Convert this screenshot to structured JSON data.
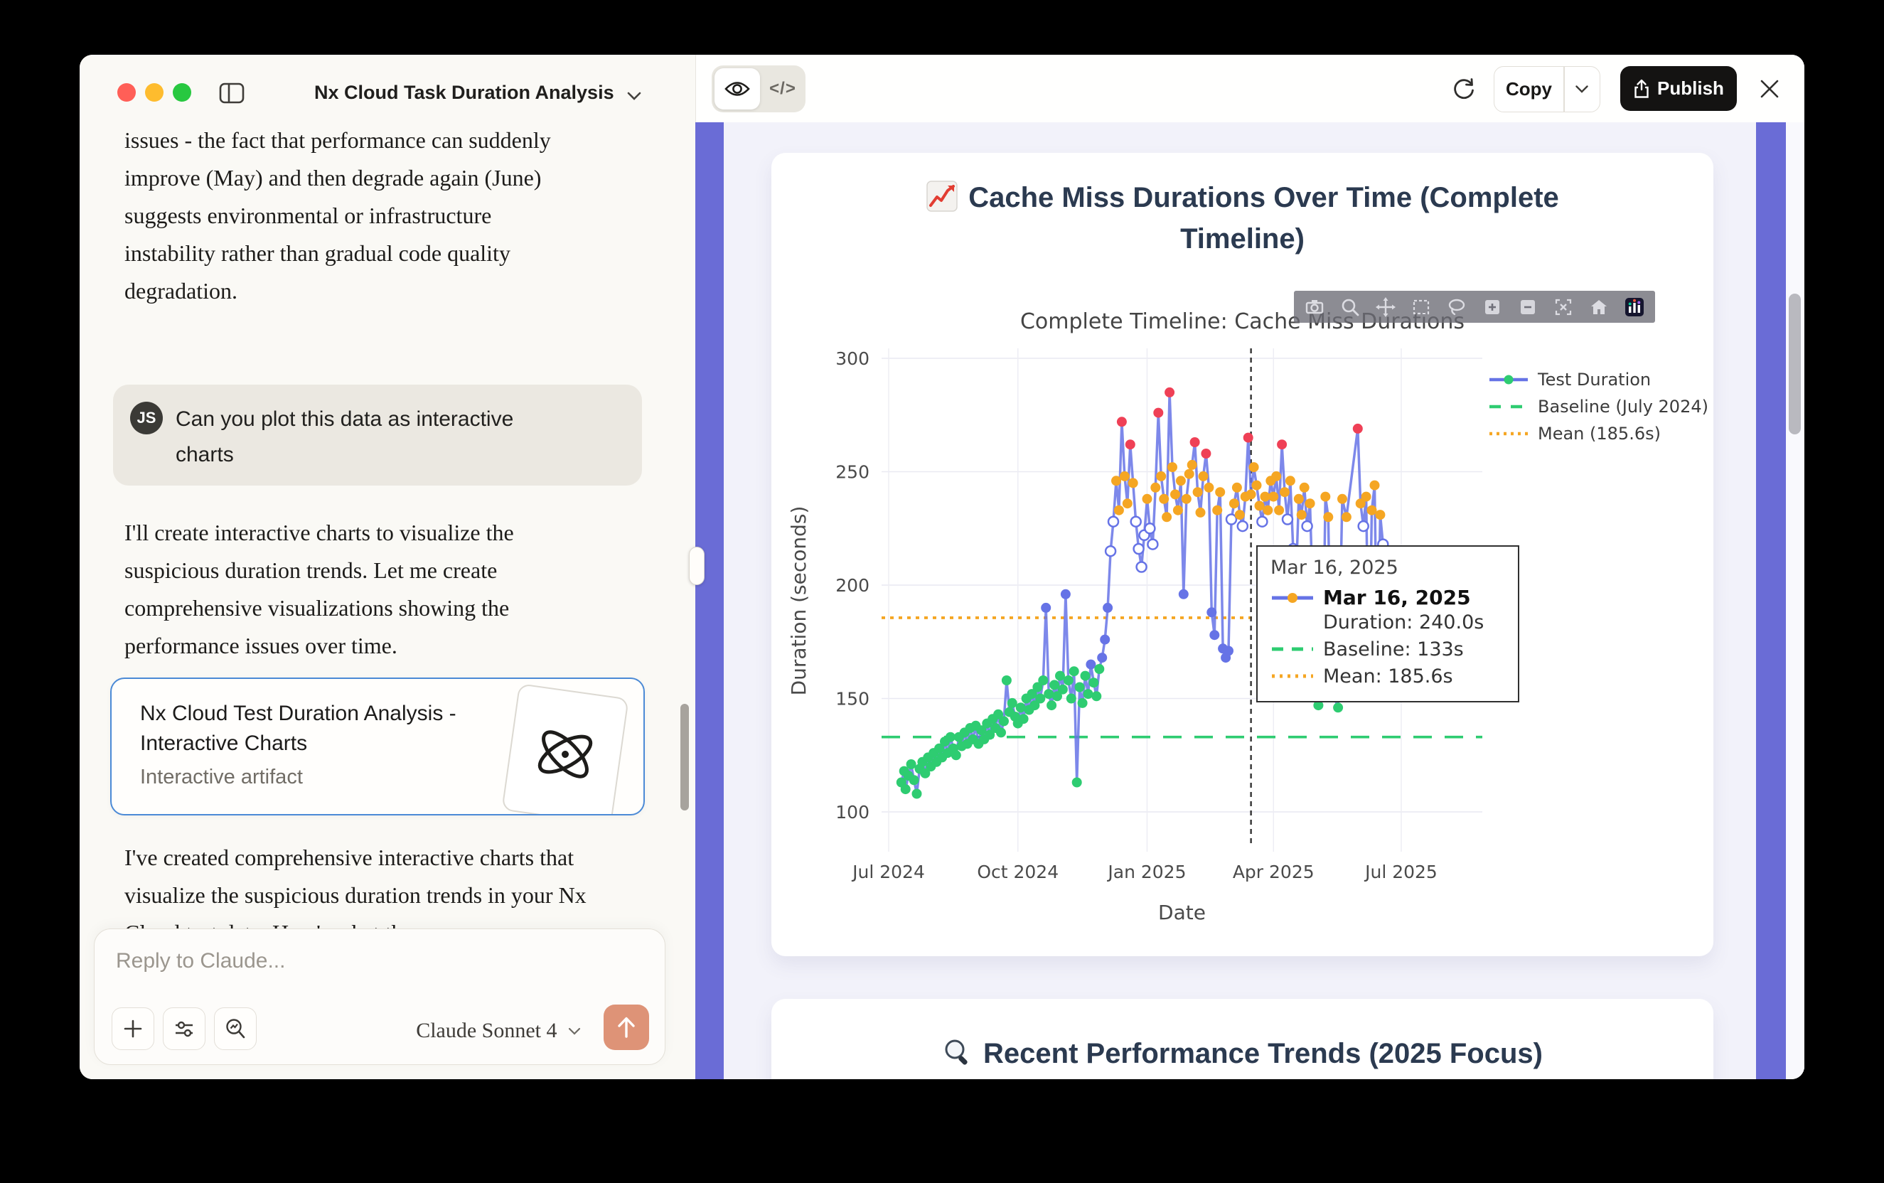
{
  "window": {
    "title": "Nx Cloud Task Duration Analysis"
  },
  "chat": {
    "intro_paragraph": "issues - the fact that performance can suddenly improve (May) and then degrade again (June) suggests environmental or infrastructure instability rather than gradual code quality degradation.",
    "user_message": {
      "avatar_initials": "JS",
      "text": "Can you plot this data as interactive charts"
    },
    "assistant_paragraph": "I'll create interactive charts to visualize the suspicious duration trends. Let me create comprehensive visualizations showing the performance issues over time.",
    "artifact_card": {
      "title": "Nx Cloud Test Duration Analysis - Interactive Charts",
      "subtitle": "Interactive artifact"
    },
    "closing_paragraph": "I've created comprehensive interactive charts that visualize the suspicious duration trends in your Nx Cloud test data. Here's what the",
    "composer": {
      "placeholder": "Reply to Claude...",
      "model_label": "Claude Sonnet 4"
    }
  },
  "artifact": {
    "toolbar": {
      "copy_label": "Copy",
      "publish_label": "Publish",
      "code_toggle_label": "</>"
    },
    "card1": {
      "icon": "chart-increasing-icon",
      "title": "Cache Miss Durations Over Time (Complete Timeline)"
    },
    "card2": {
      "icon": "magnifier-icon",
      "title": "Recent Performance Trends (2025 Focus)"
    }
  },
  "chart_data": {
    "type": "line",
    "title": "Complete Timeline: Cache Miss Durations",
    "xlabel": "Date",
    "ylabel": "Duration (seconds)",
    "x_ticks": [
      {
        "label": "Jul 2024",
        "day": 0
      },
      {
        "label": "Oct 2024",
        "day": 92
      },
      {
        "label": "Jan 2025",
        "day": 184
      },
      {
        "label": "Apr 2025",
        "day": 274
      },
      {
        "label": "Jul 2025",
        "day": 365
      }
    ],
    "y_ticks": [
      100,
      150,
      200,
      250,
      300
    ],
    "ylim": [
      95,
      310
    ],
    "day0": "2024-07-01",
    "grid": true,
    "legend_position": "right-top",
    "line_color": "#6673e6",
    "legend": [
      {
        "label": "Test Duration",
        "type": "line-marker",
        "line_color": "#6673e6",
        "marker_color": "#2ecc71"
      },
      {
        "label": "Baseline (July 2024)",
        "type": "dash",
        "color": "#2ecc71"
      },
      {
        "label": "Mean (185.6s)",
        "type": "dot",
        "color": "#f5a623"
      }
    ],
    "baseline_value": 133,
    "mean_value": 185.6,
    "vline_day": 258,
    "marker_color_rules": [
      {
        "lt": 165,
        "color": "#2ecc71"
      },
      {
        "lt": 208,
        "color": "#6673e6"
      },
      {
        "lt": 230,
        "color": "#ffffff"
      },
      {
        "lt": 255,
        "color": "#f5a623"
      },
      {
        "lt": 1000,
        "color": "#ef4056"
      }
    ],
    "points": [
      [
        9,
        113
      ],
      [
        11,
        118
      ],
      [
        12,
        110
      ],
      [
        14,
        116
      ],
      [
        16,
        121
      ],
      [
        18,
        114
      ],
      [
        20,
        108
      ],
      [
        22,
        119
      ],
      [
        24,
        122
      ],
      [
        26,
        117
      ],
      [
        28,
        124
      ],
      [
        30,
        120
      ],
      [
        32,
        126
      ],
      [
        34,
        122
      ],
      [
        36,
        128
      ],
      [
        38,
        124
      ],
      [
        40,
        131
      ],
      [
        42,
        126
      ],
      [
        44,
        133
      ],
      [
        46,
        128
      ],
      [
        48,
        125
      ],
      [
        50,
        133
      ],
      [
        52,
        129
      ],
      [
        54,
        135
      ],
      [
        56,
        130
      ],
      [
        58,
        137
      ],
      [
        60,
        132
      ],
      [
        62,
        138
      ],
      [
        64,
        130
      ],
      [
        66,
        136
      ],
      [
        68,
        132
      ],
      [
        70,
        139
      ],
      [
        72,
        134
      ],
      [
        74,
        141
      ],
      [
        76,
        137
      ],
      [
        78,
        143
      ],
      [
        80,
        135
      ],
      [
        82,
        140
      ],
      [
        84,
        158
      ],
      [
        86,
        144
      ],
      [
        88,
        148
      ],
      [
        90,
        142
      ],
      [
        92,
        139
      ],
      [
        94,
        146
      ],
      [
        96,
        141
      ],
      [
        98,
        150
      ],
      [
        100,
        145
      ],
      [
        102,
        152
      ],
      [
        104,
        147
      ],
      [
        106,
        155
      ],
      [
        108,
        150
      ],
      [
        110,
        158
      ],
      [
        112,
        190
      ],
      [
        114,
        152
      ],
      [
        116,
        147
      ],
      [
        118,
        156
      ],
      [
        120,
        151
      ],
      [
        122,
        160
      ],
      [
        124,
        154
      ],
      [
        126,
        196
      ],
      [
        128,
        158
      ],
      [
        130,
        150
      ],
      [
        132,
        162
      ],
      [
        134,
        113
      ],
      [
        136,
        155
      ],
      [
        138,
        148
      ],
      [
        140,
        160
      ],
      [
        142,
        152
      ],
      [
        144,
        165
      ],
      [
        146,
        157
      ],
      [
        148,
        151
      ],
      [
        150,
        163
      ],
      [
        152,
        168
      ],
      [
        154,
        176
      ],
      [
        156,
        190
      ],
      [
        158,
        215
      ],
      [
        160,
        228
      ],
      [
        162,
        246
      ],
      [
        164,
        233
      ],
      [
        166,
        272
      ],
      [
        168,
        248
      ],
      [
        170,
        236
      ],
      [
        172,
        262
      ],
      [
        174,
        245
      ],
      [
        176,
        228
      ],
      [
        178,
        216
      ],
      [
        180,
        208
      ],
      [
        182,
        222
      ],
      [
        184,
        238
      ],
      [
        186,
        225
      ],
      [
        188,
        218
      ],
      [
        190,
        243
      ],
      [
        192,
        276
      ],
      [
        194,
        248
      ],
      [
        196,
        238
      ],
      [
        198,
        230
      ],
      [
        200,
        285
      ],
      [
        202,
        252
      ],
      [
        204,
        240
      ],
      [
        206,
        233
      ],
      [
        208,
        246
      ],
      [
        210,
        196
      ],
      [
        212,
        238
      ],
      [
        214,
        249
      ],
      [
        216,
        253
      ],
      [
        218,
        263
      ],
      [
        220,
        241
      ],
      [
        222,
        232
      ],
      [
        224,
        248
      ],
      [
        226,
        258
      ],
      [
        228,
        243
      ],
      [
        230,
        188
      ],
      [
        232,
        178
      ],
      [
        234,
        233
      ],
      [
        236,
        241
      ],
      [
        238,
        172
      ],
      [
        240,
        168
      ],
      [
        242,
        171
      ],
      [
        244,
        229
      ],
      [
        246,
        236
      ],
      [
        248,
        243
      ],
      [
        250,
        231
      ],
      [
        252,
        226
      ],
      [
        254,
        239
      ],
      [
        256,
        265
      ],
      [
        258,
        240
      ],
      [
        260,
        252
      ],
      [
        262,
        244
      ],
      [
        264,
        235
      ],
      [
        266,
        228
      ],
      [
        268,
        239
      ],
      [
        270,
        233
      ],
      [
        272,
        246
      ],
      [
        274,
        239
      ],
      [
        276,
        248
      ],
      [
        278,
        233
      ],
      [
        280,
        262
      ],
      [
        282,
        241
      ],
      [
        284,
        229
      ],
      [
        286,
        246
      ],
      [
        288,
        216
      ],
      [
        290,
        201
      ],
      [
        292,
        238
      ],
      [
        294,
        231
      ],
      [
        296,
        243
      ],
      [
        298,
        226
      ],
      [
        300,
        236
      ],
      [
        304,
        153
      ],
      [
        306,
        147
      ],
      [
        309,
        156
      ],
      [
        311,
        239
      ],
      [
        313,
        230
      ],
      [
        315,
        158
      ],
      [
        317,
        151
      ],
      [
        320,
        146
      ],
      [
        323,
        238
      ],
      [
        326,
        230
      ],
      [
        334,
        269
      ],
      [
        336,
        236
      ],
      [
        338,
        226
      ],
      [
        340,
        239
      ],
      [
        342,
        152
      ],
      [
        344,
        233
      ],
      [
        346,
        244
      ],
      [
        348,
        156
      ],
      [
        350,
        231
      ],
      [
        352,
        218
      ]
    ],
    "tooltip": {
      "header": "Mar 16, 2025",
      "series_date": "Mar 16, 2025",
      "duration": "Duration: 240.0s",
      "baseline": "Baseline: 133s",
      "mean": "Mean: 185.6s"
    },
    "modebar_icons": [
      "camera",
      "zoom",
      "pan",
      "box-select",
      "lasso",
      "zoom-in",
      "zoom-out",
      "autoscale",
      "reset-axes",
      "plotly-logo"
    ]
  }
}
